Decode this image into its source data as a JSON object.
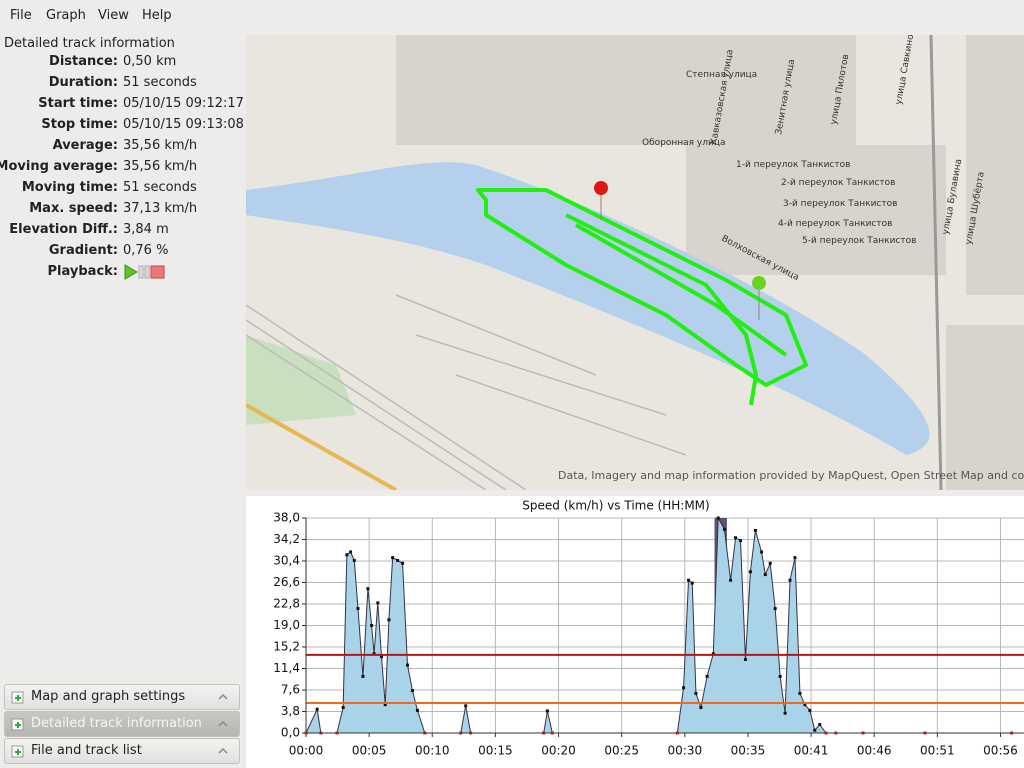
{
  "menu": [
    "File",
    "Graph",
    "View",
    "Help"
  ],
  "info": {
    "title": "Detailed track information",
    "rows": [
      {
        "label": "Distance:",
        "value": "0,50 km"
      },
      {
        "label": "Duration:",
        "value": "51 seconds"
      },
      {
        "label": "Start time:",
        "value": "05/10/15 09:12:17"
      },
      {
        "label": "Stop time:",
        "value": "05/10/15 09:13:08"
      },
      {
        "label": "Average:",
        "value": "35,56 km/h"
      },
      {
        "label": "Moving average:",
        "value": "35,56 km/h"
      },
      {
        "label": "Moving time:",
        "value": "51 seconds"
      },
      {
        "label": "Max. speed:",
        "value": "37,13 km/h"
      },
      {
        "label": "Elevation Diff.:",
        "value": "3,84 m"
      },
      {
        "label": "Gradient:",
        "value": "0,76 %"
      }
    ],
    "playback": "Playback:"
  },
  "panels": [
    "Map and graph settings",
    "Detailed track information",
    "File and track list"
  ],
  "map": {
    "attribution": "Data, Imagery and map information provided by MapQuest, Open Street Map and cont",
    "streets": [
      "Степная улица",
      "Оборонная улица",
      "1-й переулок Танкистов",
      "2-й переулок Танкистов",
      "3-й переулок Танкистов",
      "4-й переулок Танкистов",
      "5-й переулок Танкистов",
      "Волховская улица",
      "улица Савкиной",
      "Кавказовская улица",
      "Зенитная улица",
      "улица Пилотов",
      "улица Шубёрта",
      "улица Булавина"
    ]
  },
  "chart_data": {
    "type": "line",
    "title": "Speed (km/h) vs Time (HH:MM)",
    "x": [
      0,
      0.9,
      1.2,
      2.5,
      3.0,
      3.3,
      3.6,
      3.9,
      4.2,
      4.6,
      5.0,
      5.3,
      5.5,
      5.8,
      6.1,
      6.4,
      6.7,
      7.0,
      7.4,
      7.8,
      8.2,
      8.6,
      9.0,
      9.6,
      12.5,
      12.9,
      13.3,
      19.2,
      19.5,
      19.9,
      30.0,
      30.5,
      30.9,
      31.2,
      31.5,
      31.9,
      32.4,
      32.9,
      33.3,
      33.8,
      34.3,
      34.7,
      35.1,
      35.5,
      35.9,
      36.3,
      36.8,
      37.1,
      37.5,
      37.9,
      38.3,
      38.7,
      39.1,
      39.5,
      39.9,
      40.3,
      40.7,
      41.1,
      41.5,
      42.0,
      42.8,
      45.0,
      50.0,
      57.0
    ],
    "series": [
      {
        "color": "#a9d3e8",
        "values": [
          0,
          4.2,
          0,
          0,
          4.5,
          31.5,
          32,
          30.5,
          22,
          10,
          25.5,
          19,
          14,
          23,
          13.5,
          5,
          20,
          31,
          30.5,
          30,
          12,
          7.5,
          4,
          0,
          0,
          4.8,
          0,
          0,
          3.9,
          0,
          0,
          8,
          27,
          26.5,
          7,
          4.5,
          10,
          14,
          38,
          36,
          27,
          34.5,
          34,
          13,
          28.5,
          35.8,
          32,
          28,
          30,
          22,
          10,
          3.5,
          27,
          31,
          7,
          5,
          4,
          0.5,
          1.5,
          0,
          0,
          0,
          0,
          0
        ]
      }
    ],
    "xlim": [
      0,
      58
    ],
    "ylim": [
      0,
      38
    ],
    "xticks": [
      {
        "value": 0,
        "label": "00:00"
      },
      {
        "value": 5.1,
        "label": "00:05"
      },
      {
        "value": 10.2,
        "label": "00:10"
      },
      {
        "value": 15.3,
        "label": "00:15"
      },
      {
        "value": 20.4,
        "label": "00:20"
      },
      {
        "value": 25.5,
        "label": "00:25"
      },
      {
        "value": 30.6,
        "label": "00:30"
      },
      {
        "value": 35.7,
        "label": "00:35"
      },
      {
        "value": 40.8,
        "label": "00:41"
      },
      {
        "value": 45.9,
        "label": "00:46"
      },
      {
        "value": 51,
        "label": "00:51"
      },
      {
        "value": 56.1,
        "label": "00:56"
      }
    ],
    "yticks": [
      {
        "value": 0,
        "label": "0,0"
      },
      {
        "value": 3.8,
        "label": "3,8"
      },
      {
        "value": 7.6,
        "label": "7,6"
      },
      {
        "value": 11.4,
        "label": "11,4"
      },
      {
        "value": 15.2,
        "label": "15,2"
      },
      {
        "value": 19,
        "label": "19,0"
      },
      {
        "value": 22.8,
        "label": "22,8"
      },
      {
        "value": 26.6,
        "label": "26,6"
      },
      {
        "value": 30.4,
        "label": "30,4"
      },
      {
        "value": 34.2,
        "label": "34,2"
      },
      {
        "value": 38,
        "label": "38,0"
      }
    ],
    "grid": true,
    "reference_lines": [
      {
        "value": 13.8,
        "color": "#b01818"
      },
      {
        "value": 5.3,
        "color": "#ee6a20"
      }
    ],
    "highlight": {
      "range": [
        33.0,
        34.0
      ],
      "color": "#4e3f5e"
    }
  }
}
